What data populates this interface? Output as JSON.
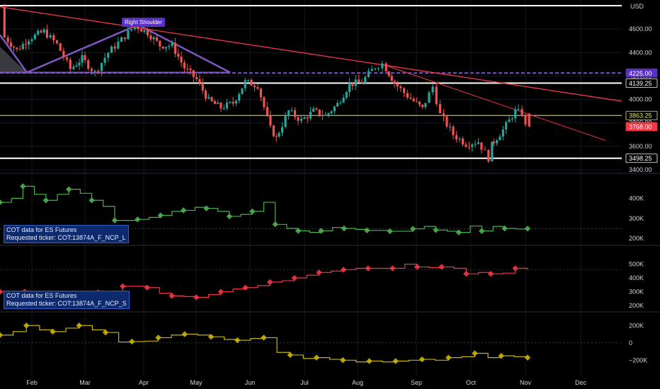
{
  "currency_label": "USD",
  "pattern_label": "Right Shoulder",
  "info_boxes": [
    {
      "title": "COT data for ES Futures",
      "ticker": "Requested ticker: COT:13874A_F_NCP_L"
    },
    {
      "title": "COT data for ES Futures",
      "ticker": "Requested ticker: COT:13874A_F_NCP_S"
    }
  ],
  "colors": {
    "background": "#000000",
    "up_candle": "#26a69a",
    "down_candle": "#ef5350",
    "trendline": "#f23645",
    "neckline": "#7e57c2",
    "long_series": "#4caf50",
    "short_series": "#f23645",
    "net_series": "#c8b400",
    "hline": "#ffffff",
    "yellow_level": "#e8e85a"
  },
  "chart_data": [
    {
      "type": "candlestick",
      "title": "",
      "ylabel": "USD",
      "ylim": [
        3400,
        4800
      ],
      "yticks": [
        3400,
        3600,
        3800,
        4000,
        4200,
        4400,
        4600
      ],
      "x_months": [
        "Feb",
        "Mar",
        "Apr",
        "May",
        "Jun",
        "Jul",
        "Aug",
        "Sep",
        "Oct",
        "Nov",
        "Dec"
      ],
      "price_tags": [
        {
          "label": "4225.00",
          "value": 4225.0,
          "style": "neckline"
        },
        {
          "label": "4139.25",
          "value": 4139.25,
          "style": "white"
        },
        {
          "label": "3863.25",
          "value": 3863.25,
          "style": "yellow"
        },
        {
          "label": "3768.00",
          "value": 3768.0,
          "style": "last"
        },
        {
          "label": "3498.25",
          "value": 3498.25,
          "style": "white"
        }
      ],
      "horizontal_lines": [
        4800,
        4225.0,
        4139.25,
        3863.25,
        3498.25
      ],
      "close_path": [
        {
          "date": "Jan 3",
          "close": 4790
        },
        {
          "date": "Jan 10",
          "close": 4690
        },
        {
          "date": "Jan 18",
          "close": 4530
        },
        {
          "date": "Jan 25",
          "close": 4420
        },
        {
          "date": "Feb 1",
          "close": 4520
        },
        {
          "date": "Feb 9",
          "close": 4580
        },
        {
          "date": "Feb 16",
          "close": 4470
        },
        {
          "date": "Feb 23",
          "close": 4260
        },
        {
          "date": "Mar 1",
          "close": 4350
        },
        {
          "date": "Mar 8",
          "close": 4230
        },
        {
          "date": "Mar 15",
          "close": 4400
        },
        {
          "date": "Mar 22",
          "close": 4510
        },
        {
          "date": "Mar 29",
          "close": 4630
        },
        {
          "date": "Apr 5",
          "close": 4570
        },
        {
          "date": "Apr 12",
          "close": 4460
        },
        {
          "date": "Apr 19",
          "close": 4460
        },
        {
          "date": "Apr 26",
          "close": 4270
        },
        {
          "date": "May 3",
          "close": 4170
        },
        {
          "date": "May 10",
          "close": 3990
        },
        {
          "date": "May 17",
          "close": 3930
        },
        {
          "date": "May 24",
          "close": 3970
        },
        {
          "date": "May 31",
          "close": 4150
        },
        {
          "date": "Jun 7",
          "close": 4120
        },
        {
          "date": "Jun 14",
          "close": 3750
        },
        {
          "date": "Jun 17",
          "close": 3670
        },
        {
          "date": "Jun 24",
          "close": 3900
        },
        {
          "date": "Jul 1",
          "close": 3820
        },
        {
          "date": "Jul 8",
          "close": 3900
        },
        {
          "date": "Jul 15",
          "close": 3860
        },
        {
          "date": "Jul 22",
          "close": 3960
        },
        {
          "date": "Jul 29",
          "close": 4130
        },
        {
          "date": "Aug 5",
          "close": 4150
        },
        {
          "date": "Aug 12",
          "close": 4280
        },
        {
          "date": "Aug 16",
          "close": 4305
        },
        {
          "date": "Aug 22",
          "close": 4140
        },
        {
          "date": "Aug 29",
          "close": 4030
        },
        {
          "date": "Sep 6",
          "close": 3920
        },
        {
          "date": "Sep 12",
          "close": 4110
        },
        {
          "date": "Sep 16",
          "close": 3870
        },
        {
          "date": "Sep 23",
          "close": 3700
        },
        {
          "date": "Sep 30",
          "close": 3620
        },
        {
          "date": "Oct 7",
          "close": 3640
        },
        {
          "date": "Oct 13",
          "close": 3500
        },
        {
          "date": "Oct 14",
          "close": 3610
        },
        {
          "date": "Oct 21",
          "close": 3740
        },
        {
          "date": "Oct 28",
          "close": 3900
        },
        {
          "date": "Nov 1",
          "close": 3880
        },
        {
          "date": "Nov 3",
          "close": 3768
        }
      ],
      "right_shoulder_apex": {
        "date": "Mar 29",
        "value": 4637
      }
    },
    {
      "type": "step-line",
      "series_label": "COT:13874A_F_NCP_L",
      "ylim": [
        190000,
        500000
      ],
      "yticks": [
        {
          "value": 200000,
          "label": "200K"
        },
        {
          "value": 300000,
          "label": "300K"
        },
        {
          "value": 400000,
          "label": "400K"
        }
      ],
      "values": [
        380000,
        400000,
        460000,
        420000,
        390000,
        420000,
        445000,
        425000,
        390000,
        360000,
        290000,
        290000,
        295000,
        305000,
        315000,
        335000,
        340000,
        355000,
        350000,
        335000,
        310000,
        320000,
        335000,
        380000,
        270000,
        250000,
        238000,
        230000,
        238000,
        255000,
        250000,
        245000,
        240000,
        240000,
        236000,
        236000,
        248000,
        260000,
        242000,
        236000,
        230000,
        262000,
        237000,
        260000,
        250000,
        247000,
        249000
      ]
    },
    {
      "type": "step-line",
      "series_label": "COT:13874A_F_NCP_S",
      "ylim": [
        190000,
        600000
      ],
      "yticks": [
        {
          "value": 200000,
          "label": "200K"
        },
        {
          "value": 300000,
          "label": "300K"
        },
        {
          "value": 400000,
          "label": "400K"
        },
        {
          "value": 500000,
          "label": "500K"
        }
      ],
      "values": [
        300000,
        295000,
        300000,
        295000,
        290000,
        295000,
        290000,
        300000,
        296000,
        292000,
        340000,
        340000,
        330000,
        290000,
        270000,
        265000,
        260000,
        280000,
        300000,
        320000,
        330000,
        345000,
        370000,
        380000,
        400000,
        420000,
        440000,
        450000,
        460000,
        470000,
        470000,
        470000,
        470000,
        500000,
        480000,
        475000,
        480000,
        470000,
        430000,
        440000,
        430000,
        435000,
        470000,
        460000
      ]
    },
    {
      "type": "step-line",
      "series_label": "net",
      "ylim": [
        -320000,
        300000
      ],
      "yticks": [
        {
          "value": 200000,
          "label": "200K"
        },
        {
          "value": 0,
          "label": "0"
        },
        {
          "value": -200000,
          "label": "−200K"
        }
      ],
      "values": [
        90000,
        130000,
        200000,
        150000,
        130000,
        170000,
        200000,
        150000,
        120000,
        10000,
        15000,
        20000,
        60000,
        90000,
        100000,
        90000,
        70000,
        40000,
        30000,
        50000,
        60000,
        -110000,
        -140000,
        -180000,
        -170000,
        -190000,
        -200000,
        -220000,
        -210000,
        -220000,
        -210000,
        -200000,
        -190000,
        -200000,
        -170000,
        -160000,
        -120000,
        -170000,
        -150000,
        -160000,
        -170000
      ]
    }
  ]
}
